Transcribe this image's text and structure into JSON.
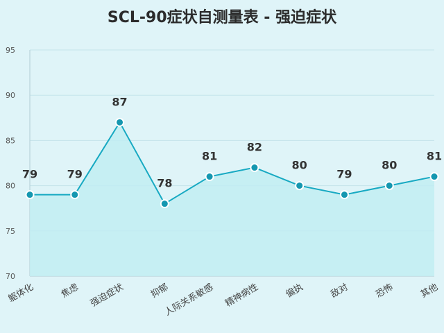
{
  "chart_data": {
    "type": "area",
    "title": "SCL-90症状自测量表 - 强迫症状",
    "categories": [
      "躯体化",
      "焦虑",
      "强迫症状",
      "抑郁",
      "人际关系敏感",
      "精神病性",
      "偏执",
      "敌对",
      "恐怖",
      "其他"
    ],
    "series": [
      {
        "values": [
          79,
          79,
          87,
          78,
          81,
          82,
          80,
          79,
          80,
          81
        ]
      }
    ],
    "ylim": [
      70,
      95
    ],
    "yticks": [
      70,
      75,
      80,
      85,
      90,
      95
    ],
    "grid": true,
    "legend": "none",
    "colors": {
      "line": "#17a9c2",
      "fill": "#c2edf2",
      "marker": "#1597b0",
      "background": "#dff4f8"
    }
  }
}
